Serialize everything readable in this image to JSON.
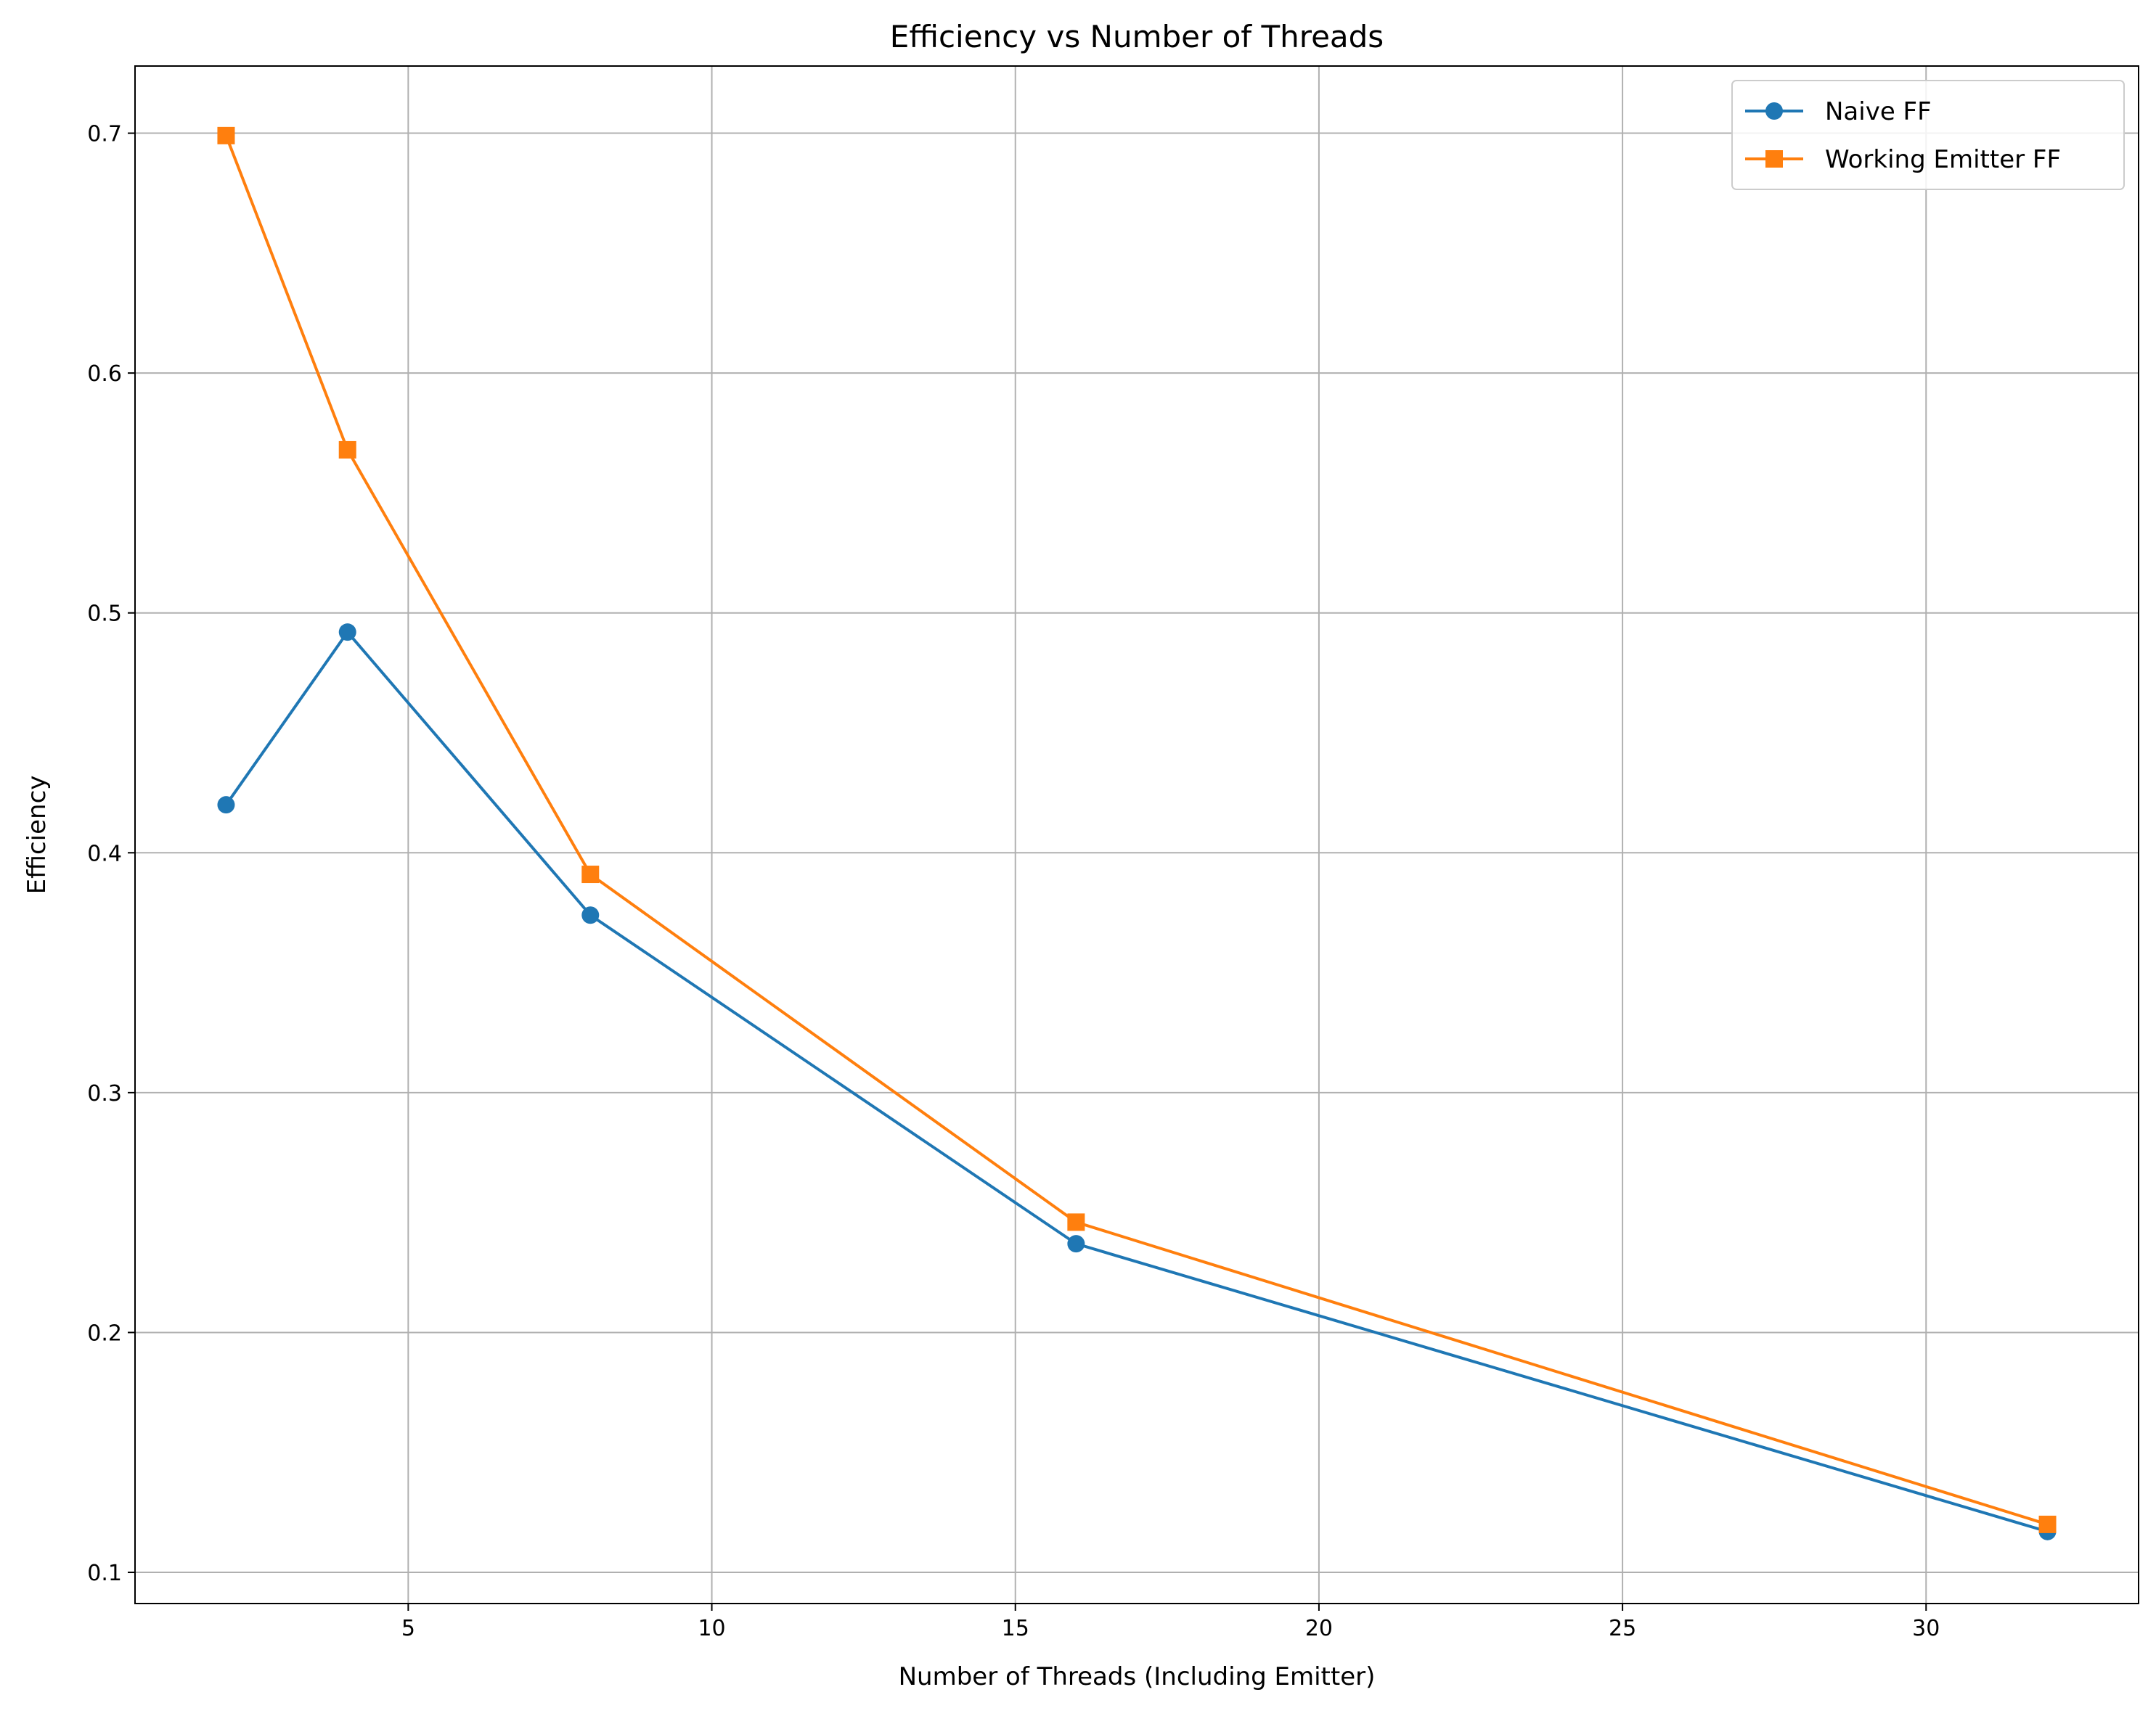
{
  "chart_data": {
    "type": "line",
    "title": "Efficiency vs Number of Threads",
    "xlabel": "Number of Threads (Including Emitter)",
    "ylabel": "Efficiency",
    "xlim": [
      0.5,
      33.5
    ],
    "ylim": [
      0.087,
      0.728
    ],
    "xticks": [
      5,
      10,
      15,
      20,
      25,
      30
    ],
    "yticks": [
      0.1,
      0.2,
      0.3,
      0.4,
      0.5,
      0.6,
      0.7
    ],
    "xtick_labels": [
      "5",
      "10",
      "15",
      "20",
      "25",
      "30"
    ],
    "ytick_labels": [
      "0.1",
      "0.2",
      "0.3",
      "0.4",
      "0.5",
      "0.6",
      "0.7"
    ],
    "grid": true,
    "legend_position": "top-right",
    "series": [
      {
        "name": "Naive FF",
        "color": "#1f77b4",
        "marker": "circle",
        "x": [
          2,
          4,
          8,
          16,
          32
        ],
        "y": [
          0.42,
          0.492,
          0.374,
          0.237,
          0.117
        ]
      },
      {
        "name": "Working Emitter FF",
        "color": "#ff7f0e",
        "marker": "square",
        "x": [
          2,
          4,
          8,
          16,
          32
        ],
        "y": [
          0.699,
          0.568,
          0.391,
          0.246,
          0.12
        ]
      }
    ]
  }
}
